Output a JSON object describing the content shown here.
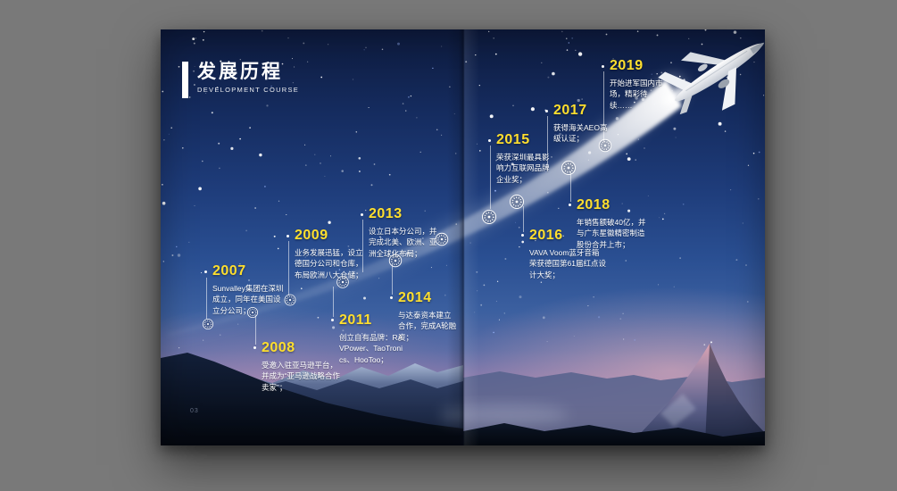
{
  "brochure": {
    "title": "发展历程",
    "subtitle": "DEVELOPMENT COURSE",
    "page_number": "03"
  },
  "timeline": [
    {
      "year": "2007",
      "desc": "Sunvalley集团在深圳成立，同年在美国设立分公司；"
    },
    {
      "year": "2008",
      "desc": "受邀入驻亚马逊平台，并成为“亚马逊战略合作卖家”；"
    },
    {
      "year": "2009",
      "desc": "业务发展迅猛，设立德国分公司和仓库，布局欧洲八大仓储；"
    },
    {
      "year": "2011",
      "desc": "创立自有品牌：RAVPower、TaoTronics、HooToo；"
    },
    {
      "year": "2013",
      "desc": "设立日本分公司，并完成北美、欧洲、亚洲全球化布局；"
    },
    {
      "year": "2014",
      "desc": "与达泰资本建立合作，完成A轮融资；"
    },
    {
      "year": "2015",
      "desc": "荣获深圳最具影响力互联网品牌企业奖；"
    },
    {
      "year": "2016",
      "desc": "VAVA Voom蓝牙音箱荣获德国第61届红点设计大奖；"
    },
    {
      "year": "2017",
      "desc": "获得海关AEO高级认证；"
    },
    {
      "year": "2018",
      "desc": "年销售额破40亿，并与广东星徽精密制造股份合并上市；"
    },
    {
      "year": "2019",
      "desc": "开始进军国内市场，精彩待续……"
    }
  ],
  "icons": {
    "airplane-icon": "✈",
    "timeline-node-icon": "❂"
  },
  "colors": {
    "accent_year": "#ffdf2e",
    "body_text": "#ffffff",
    "outer_background": "#797979",
    "sky_top": "#0d1a3c",
    "sky_mid": "#2a4f92",
    "horizon_pink": "#d2a4b6",
    "beam": "#ffffff"
  }
}
